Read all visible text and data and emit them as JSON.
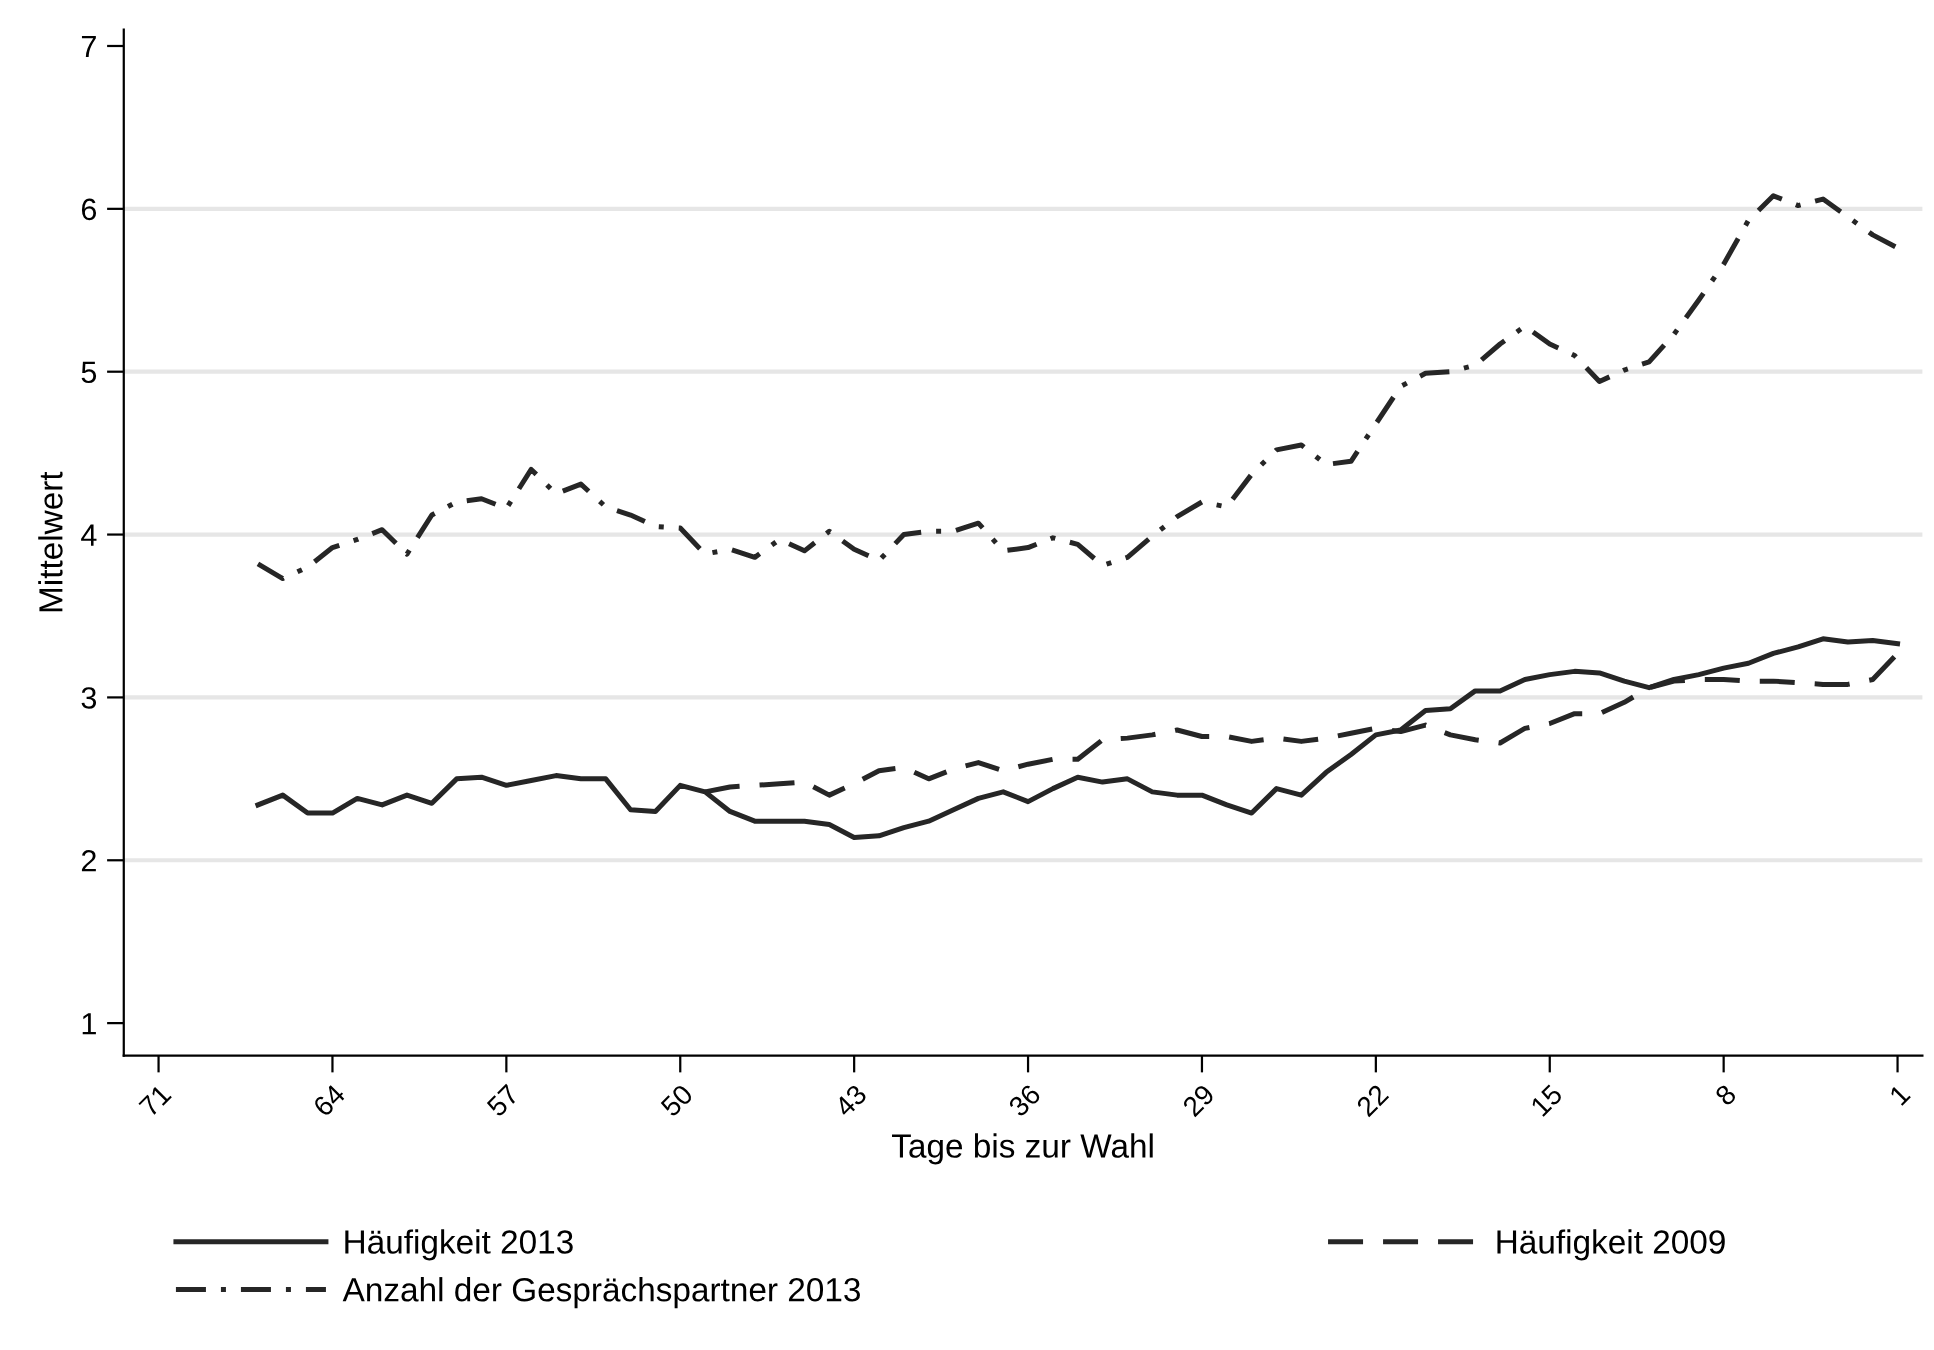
{
  "chart_data": {
    "type": "line",
    "xlabel": "Tage bis zur Wahl",
    "ylabel": "Mittelwert",
    "xlim": [
      72.4,
      0
    ],
    "xticks": [
      71,
      64,
      57,
      50,
      43,
      36,
      29,
      22,
      15,
      8,
      1
    ],
    "ylim": [
      0.8,
      7.1
    ],
    "yticks": [
      1,
      2,
      3,
      4,
      5,
      6,
      7
    ],
    "grid": "y",
    "legend": "bottom",
    "marker": "none",
    "series": [
      {
        "name": "Häufigkeit 2013",
        "color": "#262626",
        "line_style": "solid",
        "x": [
          67,
          66,
          65,
          64,
          63,
          62,
          61,
          60,
          59,
          58,
          57,
          56,
          55,
          54,
          53,
          52,
          51,
          50,
          49,
          48,
          47,
          46,
          45,
          44,
          43,
          42,
          41,
          40,
          39,
          38,
          37,
          36,
          35,
          34,
          33,
          32,
          31,
          30,
          29,
          28,
          27,
          26,
          25,
          24,
          23,
          22,
          21,
          20,
          19,
          18,
          17,
          16,
          15,
          14,
          13,
          12,
          11,
          10,
          9,
          8,
          7,
          6,
          5,
          4,
          3,
          2,
          1
        ],
        "values": [
          2.34,
          2.4,
          2.29,
          2.29,
          2.38,
          2.34,
          2.4,
          2.35,
          2.5,
          2.51,
          2.46,
          2.49,
          2.52,
          2.5,
          2.5,
          2.31,
          2.3,
          2.46,
          2.42,
          2.3,
          2.24,
          2.24,
          2.24,
          2.22,
          2.14,
          2.15,
          2.2,
          2.24,
          2.31,
          2.38,
          2.42,
          2.36,
          2.44,
          2.51,
          2.48,
          2.5,
          2.42,
          2.4,
          2.4,
          2.34,
          2.29,
          2.44,
          2.4,
          2.54,
          2.65,
          2.77,
          2.8,
          2.92,
          2.93,
          3.04,
          3.04,
          3.11,
          3.14,
          3.16,
          3.15,
          3.1,
          3.06,
          3.11,
          3.14,
          3.18,
          3.21,
          3.27,
          3.31,
          3.36,
          3.34,
          3.35,
          3.33
        ]
      },
      {
        "name": "Häufigkeit 2009",
        "color": "#262626",
        "line_style": "dashed",
        "x": [
          49,
          48,
          47,
          46,
          45,
          44,
          43,
          42,
          41,
          40,
          39,
          38,
          37,
          36,
          35,
          34,
          33,
          32,
          31,
          30,
          29,
          28,
          27,
          26,
          25,
          24,
          23,
          22,
          21,
          20,
          19,
          18,
          17,
          16,
          15,
          14,
          13,
          12,
          11,
          10,
          9,
          8,
          7,
          6,
          5,
          4,
          3,
          2,
          1
        ],
        "values": [
          2.42,
          2.45,
          2.46,
          2.47,
          2.48,
          2.4,
          2.47,
          2.55,
          2.57,
          2.5,
          2.56,
          2.6,
          2.55,
          2.59,
          2.62,
          2.62,
          2.74,
          2.75,
          2.77,
          2.8,
          2.76,
          2.76,
          2.73,
          2.75,
          2.73,
          2.75,
          2.78,
          2.81,
          2.79,
          2.83,
          2.77,
          2.74,
          2.72,
          2.81,
          2.84,
          2.9,
          2.9,
          2.97,
          3.06,
          3.1,
          3.11,
          3.11,
          3.1,
          3.1,
          3.09,
          3.08,
          3.08,
          3.11,
          3.27
        ]
      },
      {
        "name": "Anzahl der Gesprächspartner 2013",
        "color": "#262626",
        "line_style": "dashdot",
        "x": [
          67,
          66,
          65,
          64,
          63,
          62,
          61,
          60,
          59,
          58,
          57,
          56,
          55,
          54,
          53,
          52,
          51,
          50,
          49,
          48,
          47,
          46,
          45,
          44,
          43,
          42,
          41,
          40,
          39,
          38,
          37,
          36,
          35,
          34,
          33,
          32,
          31,
          30,
          29,
          28,
          27,
          26,
          25,
          24,
          23,
          22,
          21,
          20,
          19,
          18,
          17,
          16,
          15,
          14,
          13,
          12,
          11,
          10,
          9,
          8,
          7,
          6,
          5,
          4,
          3,
          2,
          1
        ],
        "values": [
          3.82,
          3.73,
          3.8,
          3.92,
          3.97,
          4.03,
          3.88,
          4.12,
          4.2,
          4.22,
          4.16,
          4.4,
          4.25,
          4.31,
          4.17,
          4.12,
          4.05,
          4.04,
          3.88,
          3.91,
          3.86,
          3.97,
          3.9,
          4.02,
          3.91,
          3.84,
          4.0,
          4.02,
          4.02,
          4.07,
          3.9,
          3.92,
          3.98,
          3.94,
          3.81,
          3.86,
          3.99,
          4.11,
          4.2,
          4.17,
          4.37,
          4.52,
          4.55,
          4.43,
          4.45,
          4.68,
          4.91,
          4.99,
          5.0,
          5.04,
          5.17,
          5.28,
          5.17,
          5.1,
          4.94,
          5.01,
          5.06,
          5.23,
          5.44,
          5.66,
          5.93,
          6.08,
          6.02,
          6.06,
          5.95,
          5.84,
          5.76
        ]
      }
    ]
  }
}
